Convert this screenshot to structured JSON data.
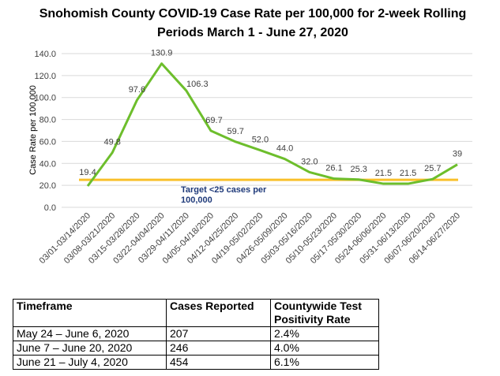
{
  "chart_data": {
    "type": "line",
    "title": "Snohomish County COVID-19 Case Rate per 100,000 for 2-week Rolling Periods March 1 - June 27, 2020",
    "ylabel": "Case Rate per 100,000",
    "xlabel": "",
    "ylim": [
      0,
      140
    ],
    "yticks": [
      "0.0",
      "20.0",
      "40.0",
      "60.0",
      "80.0",
      "100.0",
      "120.0",
      "140.0"
    ],
    "grid": true,
    "categories": [
      "03/01-03/14/2020",
      "03/08-03/21/2020",
      "03/15-03/28/2020",
      "03/22-04/04/2020",
      "03/29-04/11/2020",
      "04/05-04/18/2020",
      "04/12-04/25/2020",
      "04/19-05/02/2020",
      "04/26-05/09/2020",
      "05/03-05/16/2020",
      "05/10-05/23/2020",
      "05/17-05/30/2020",
      "05/24-06/06/2020",
      "05/31-06/13/2020",
      "06/07-06/20/2020",
      "06/14-06/27/2020"
    ],
    "series": [
      {
        "values": [
          19.4,
          49.8,
          97.6,
          130.9,
          106.3,
          69.7,
          59.7,
          52.0,
          44.0,
          32.0,
          26.1,
          25.3,
          21.5,
          21.5,
          25.7,
          39
        ],
        "labels": [
          "19.4",
          "49.8",
          "97.6",
          "130.9",
          "106.3",
          "69.7",
          "59.7",
          "52.0",
          "44.0",
          "32.0",
          "26.1",
          "25.3",
          "21.5",
          "21.5",
          "25.7",
          "39"
        ],
        "color": "#6DBE2C"
      }
    ],
    "target": {
      "value": 25,
      "label": "Target <25 cases per 100,000",
      "color": "#F9C02B",
      "label_color": "#1F3A7A"
    }
  },
  "table": {
    "headers": [
      "Timeframe",
      "Cases Reported",
      "Countywide Test Positivity Rate"
    ],
    "rows": [
      [
        "May 24 – June 6, 2020",
        "207",
        "2.4%"
      ],
      [
        "June 7 – June 20, 2020",
        "246",
        "4.0%"
      ],
      [
        "June 21 – July 4, 2020",
        "454",
        "6.1%"
      ]
    ]
  }
}
